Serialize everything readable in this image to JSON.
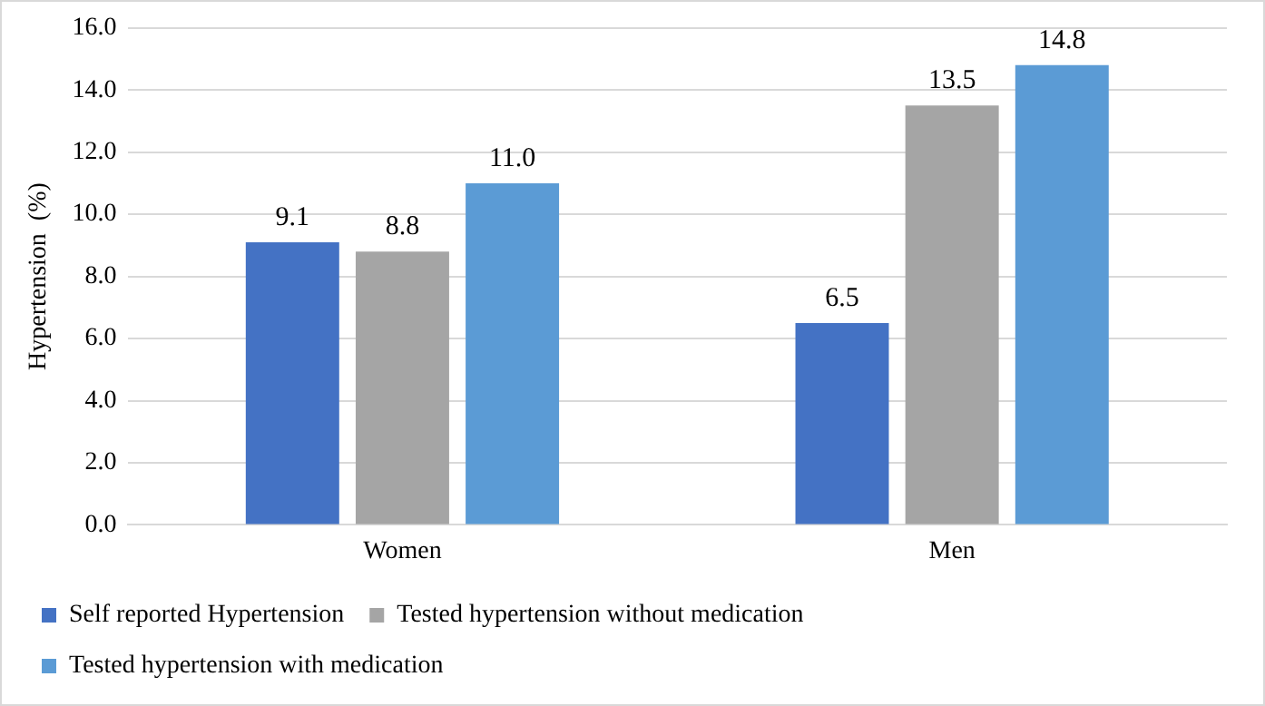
{
  "chart_data": {
    "type": "bar",
    "ylabel": "Hypertension  (%)",
    "categories": [
      "Women",
      "Men"
    ],
    "series": [
      {
        "name": "Self reported Hypertension",
        "color": "#4472c4",
        "values": [
          9.1,
          6.5
        ],
        "value_labels": [
          "9.1",
          "6.5"
        ]
      },
      {
        "name": "Tested hypertension without medication",
        "color": "#a5a5a5",
        "values": [
          8.8,
          13.5
        ],
        "value_labels": [
          "8.8",
          "13.5"
        ]
      },
      {
        "name": "Tested hypertension with medication",
        "color": "#5b9bd5",
        "values": [
          11.0,
          14.8
        ],
        "value_labels": [
          "11.0",
          "14.8"
        ]
      }
    ],
    "ylim": [
      0,
      16
    ],
    "yticks": [
      {
        "value": 0,
        "label": "0.0"
      },
      {
        "value": 2,
        "label": "2.0"
      },
      {
        "value": 4,
        "label": "4.0"
      },
      {
        "value": 6,
        "label": "6.0"
      },
      {
        "value": 8,
        "label": "8.0"
      },
      {
        "value": 10,
        "label": "10.0"
      },
      {
        "value": 12,
        "label": "12.0"
      },
      {
        "value": 14,
        "label": "14.0"
      },
      {
        "value": 16,
        "label": "16.0"
      }
    ],
    "grid": "y",
    "legend": "bottom"
  }
}
